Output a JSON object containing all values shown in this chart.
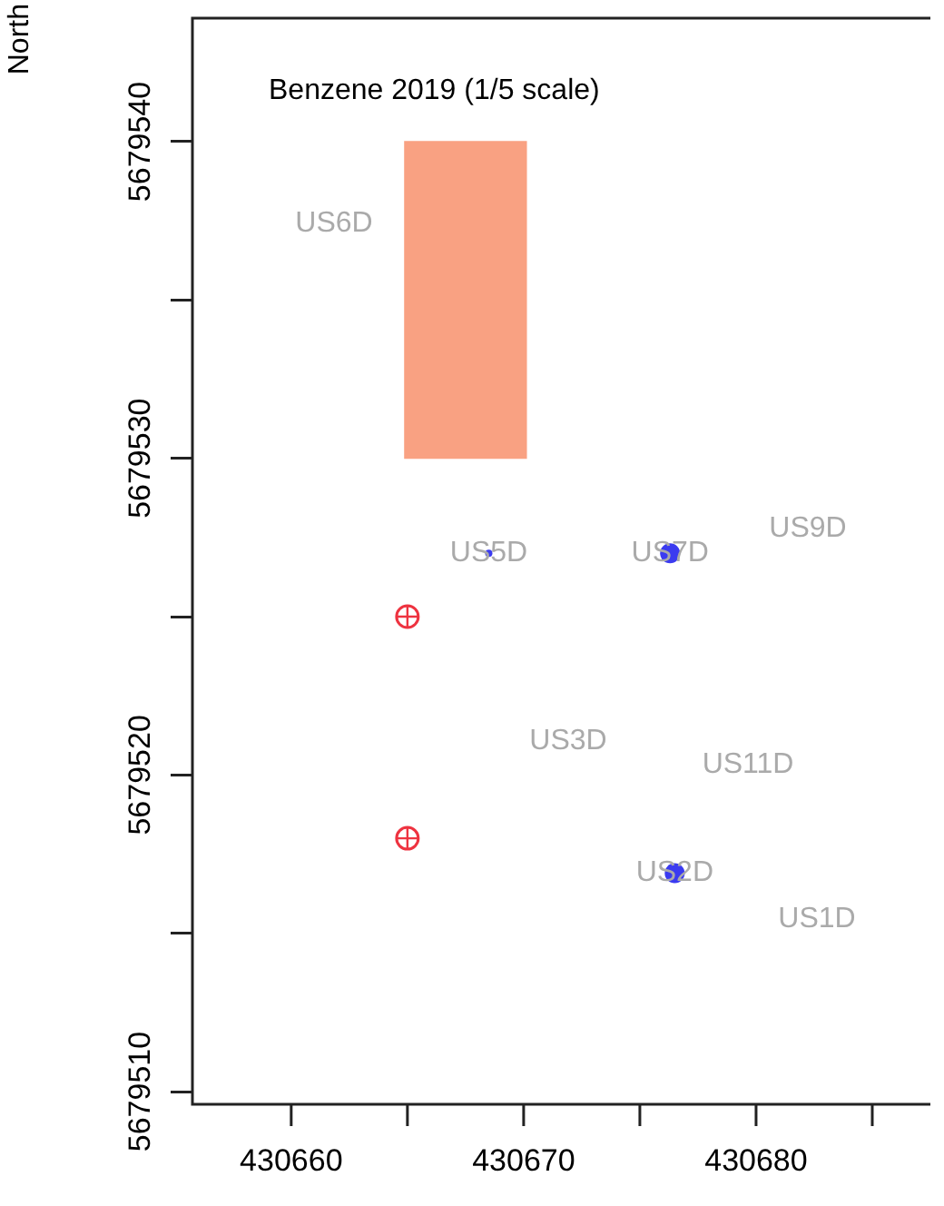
{
  "chart_data": {
    "type": "scatter",
    "title": "Benzene 2019 (1/5 scale)",
    "ylabel": "North",
    "xlim": [
      430655.75,
      430687.5
    ],
    "ylim": [
      5679509.6,
      5679543.9
    ],
    "xticks": [
      430660,
      {
        "value": 430665,
        "label": null
      },
      430670,
      {
        "value": 430675,
        "label": null
      },
      430680,
      {
        "value": 430685,
        "label": null
      }
    ],
    "yticks": [
      5679510,
      {
        "value": 5679515,
        "label": null
      },
      5679520,
      {
        "value": 5679525,
        "label": null
      },
      5679530,
      {
        "value": 5679535,
        "label": null
      },
      5679540
    ],
    "grid": false,
    "legend": false,
    "series": [
      {
        "type": "bar",
        "color": "#f9a182",
        "x": [
          430667.5
        ],
        "base": [
          5679530
        ],
        "values": [
          10
        ]
      },
      {
        "color": "#ee3340",
        "x": [
          430665,
          430665
        ],
        "values": [
          5679525,
          5679518
        ]
      },
      {
        "color": "#3b3bf0",
        "x": [
          430676.3,
          430676.5
        ],
        "values": [
          5679527,
          5679516.9
        ]
      },
      {
        "color": "#3b3bf0",
        "x": [
          430668.5
        ],
        "values": [
          5679527
        ]
      }
    ],
    "annotations": [
      "US6D",
      {
        "text": "US5D",
        "x": 430668.5,
        "y": 5679527
      },
      {
        "text": "US7D",
        "x": 430676.3,
        "y": 5679527
      },
      "US9D",
      "US3D",
      "US11D",
      {
        "text": "US2D",
        "x": 430676.5,
        "y": 5679516.9
      },
      "US1D"
    ]
  }
}
